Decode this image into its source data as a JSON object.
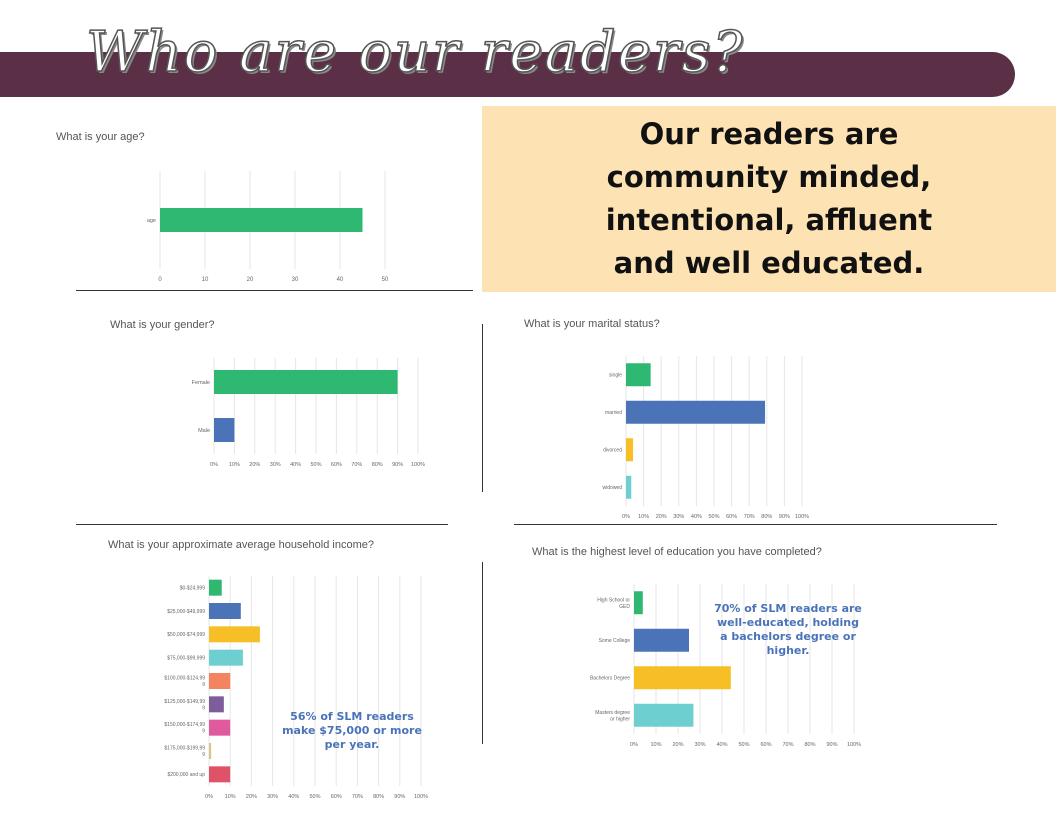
{
  "header": {
    "title": "Who are our readers?",
    "callout": "Our readers are community minded, intentional, affluent and well educated."
  },
  "colors": {
    "banner": "#5b2f45",
    "callout_bg": "#fde2b4",
    "green": "#2eb872",
    "blue": "#4a73b8",
    "yellow": "#f6bf26",
    "teal": "#6ecfd0",
    "orange": "#f4845f",
    "purple": "#7d5d9b",
    "pink": "#df5b9d",
    "tan": "#d8c48a",
    "red": "#e05267",
    "grid": "#e6e6e6"
  },
  "notes": {
    "income": "56% of SLM readers make $75,000 or more per year.",
    "education": "70% of SLM readers are well-educated, holding a bachelors degree or higher."
  },
  "chart_data": [
    {
      "id": "age",
      "type": "bar",
      "orientation": "horizontal",
      "title": "What is your age?",
      "categories": [
        "age"
      ],
      "values": [
        45
      ],
      "xlim": [
        0,
        50
      ],
      "xticks": [
        "0",
        "10",
        "20",
        "30",
        "40",
        "50"
      ],
      "colors": [
        "#2eb872"
      ],
      "grid": true
    },
    {
      "id": "gender",
      "type": "bar",
      "orientation": "horizontal",
      "title": "What is your gender?",
      "categories": [
        "Female",
        "Male"
      ],
      "values": [
        90,
        10
      ],
      "xlim": [
        0,
        100
      ],
      "xticks": [
        "0%",
        "10%",
        "20%",
        "30%",
        "40%",
        "50%",
        "60%",
        "70%",
        "80%",
        "90%",
        "100%"
      ],
      "colors": [
        "#2eb872",
        "#4a73b8"
      ],
      "grid": true
    },
    {
      "id": "marital",
      "type": "bar",
      "orientation": "horizontal",
      "title": "What is your marital status?",
      "categories": [
        "single",
        "married",
        "divorced",
        "widowed"
      ],
      "values": [
        14,
        79,
        4,
        3
      ],
      "xlim": [
        0,
        100
      ],
      "xticks": [
        "0%",
        "10%",
        "20%",
        "30%",
        "40%",
        "50%",
        "60%",
        "70%",
        "80%",
        "90%",
        "100%"
      ],
      "colors": [
        "#2eb872",
        "#4a73b8",
        "#f6bf26",
        "#6ecfd0"
      ],
      "grid": true
    },
    {
      "id": "income",
      "type": "bar",
      "orientation": "horizontal",
      "title": "What is your approximate average household income?",
      "categories": [
        "$0-$24,999",
        "$25,000-$49,999",
        "$50,000-$74,999",
        "$75,000-$99,999",
        "$100,000-$124,999",
        "$125,000-$149,999",
        "$150,000-$174,999",
        "$175,000-$199,999",
        "$200,000 and up"
      ],
      "values": [
        6,
        15,
        24,
        16,
        10,
        7,
        10,
        1,
        10
      ],
      "xlim": [
        0,
        100
      ],
      "xticks": [
        "0%",
        "10%",
        "20%",
        "30%",
        "40%",
        "50%",
        "60%",
        "70%",
        "80%",
        "90%",
        "100%"
      ],
      "colors": [
        "#2eb872",
        "#4a73b8",
        "#f6bf26",
        "#6ecfd0",
        "#f4845f",
        "#7d5d9b",
        "#df5b9d",
        "#d8c48a",
        "#e05267"
      ],
      "grid": true
    },
    {
      "id": "education",
      "type": "bar",
      "orientation": "horizontal",
      "title": "What is the highest level of education you have completed?",
      "categories": [
        "High School or GED",
        "Some College",
        "Bachelors Degree",
        "Masters degree or higher"
      ],
      "values": [
        4,
        25,
        44,
        27
      ],
      "xlim": [
        0,
        100
      ],
      "xticks": [
        "0%",
        "10%",
        "20%",
        "30%",
        "40%",
        "50%",
        "60%",
        "70%",
        "80%",
        "90%",
        "100%"
      ],
      "colors": [
        "#2eb872",
        "#4a73b8",
        "#f6bf26",
        "#6ecfd0"
      ],
      "grid": true
    }
  ]
}
